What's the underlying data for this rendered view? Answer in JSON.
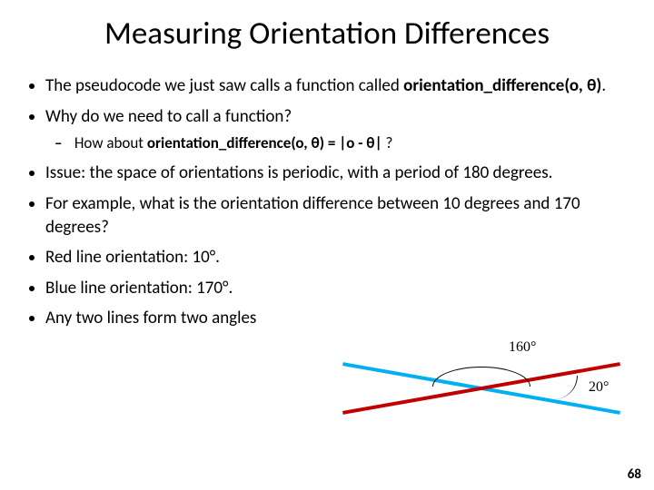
{
  "title": "Measuring Orientation Differences",
  "bullets": {
    "b1a": "The pseudocode we just saw calls a function called ",
    "b1b": "orientation_difference(o, θ)",
    "b1c": ".",
    "b2": "Why do we need to call a function?",
    "b2sub_a": "How about ",
    "b2sub_b": "orientation_difference(o, θ) = |o - θ|",
    "b2sub_c": " ?",
    "b3": "Issue: the space of orientations is periodic, with a period of 180 degrees.",
    "b4": "For example, what is the orientation difference between 10 degrees and 170 degrees?",
    "b5a": "Red line orientation: ",
    "b5b": "10°.",
    "b6a": "Blue line orientation: ",
    "b6b": "170°.",
    "b7": "Any two lines form two angles"
  },
  "diagram": {
    "red_color": "#c00000",
    "blue_color": "#00b0f0",
    "red_angle_deg": -10,
    "blue_angle_deg": 10,
    "line_length": 310,
    "line_thickness": 4,
    "label_160": "160°",
    "label_20": "20°"
  },
  "page_number": "68"
}
